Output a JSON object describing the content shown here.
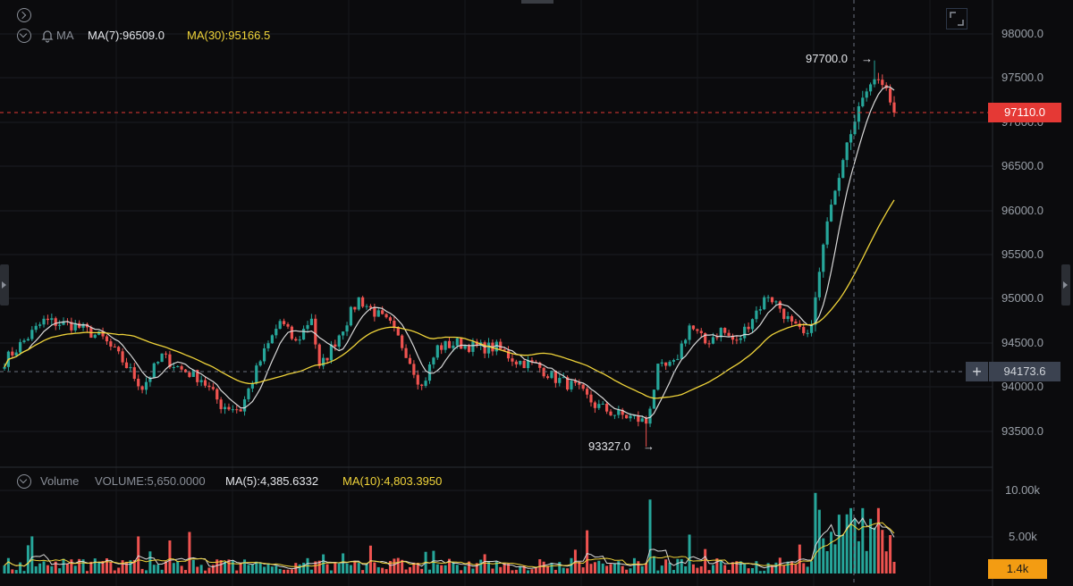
{
  "main_legend": {
    "indicator": "MA",
    "ma7": "MA(7):96509.0",
    "ma30": "MA(30):95166.5"
  },
  "volume_legend": {
    "title": "Volume",
    "volume": "VOLUME:5,650.0000",
    "ma5": "MA(5):4,385.6332",
    "ma10": "MA(10):4,803.3950"
  },
  "price_ticks": [
    "98000.0",
    "97500.0",
    "97000.0",
    "96500.0",
    "96000.0",
    "95500.0",
    "95000.0",
    "94500.0",
    "94000.0",
    "93500.0"
  ],
  "volume_ticks": [
    "10.00k",
    "5.00k"
  ],
  "annotations": {
    "high_label": "97700.0",
    "low_label": "93327.0"
  },
  "last_price_tag": "97110.0",
  "crosshair_price_tag": "94173.6",
  "last_volume_tag": "1.4k",
  "colors": {
    "up": "#26a69a",
    "down": "#ef5350",
    "ma_fast": "#d9d9d9",
    "ma_slow": "#f0d43a",
    "last_price": "#e53935",
    "volume_tag": "#f39c12"
  },
  "chart_data": {
    "type": "candlestick",
    "price_range": [
      93150,
      98300
    ],
    "volume_range": [
      0,
      11000
    ],
    "price_high": 97700.0,
    "price_low": 93327.0,
    "last_price": 97110.0,
    "keypoints": [
      {
        "i": 0,
        "p": 94300
      },
      {
        "i": 10,
        "p": 94750
      },
      {
        "i": 18,
        "p": 94700
      },
      {
        "i": 25,
        "p": 94550
      },
      {
        "i": 30,
        "p": 94300
      },
      {
        "i": 35,
        "p": 94000
      },
      {
        "i": 40,
        "p": 94350
      },
      {
        "i": 45,
        "p": 94200
      },
      {
        "i": 50,
        "p": 94100
      },
      {
        "i": 55,
        "p": 93800
      },
      {
        "i": 60,
        "p": 93750
      },
      {
        "i": 65,
        "p": 94300
      },
      {
        "i": 70,
        "p": 94750
      },
      {
        "i": 74,
        "p": 94500
      },
      {
        "i": 78,
        "p": 94800
      },
      {
        "i": 80,
        "p": 94200
      },
      {
        "i": 85,
        "p": 94600
      },
      {
        "i": 90,
        "p": 95000
      },
      {
        "i": 94,
        "p": 94850
      },
      {
        "i": 98,
        "p": 94700
      },
      {
        "i": 102,
        "p": 94400
      },
      {
        "i": 106,
        "p": 94000
      },
      {
        "i": 110,
        "p": 94450
      },
      {
        "i": 115,
        "p": 94500
      },
      {
        "i": 120,
        "p": 94450
      },
      {
        "i": 125,
        "p": 94450
      },
      {
        "i": 130,
        "p": 94300
      },
      {
        "i": 135,
        "p": 94250
      },
      {
        "i": 140,
        "p": 94100
      },
      {
        "i": 145,
        "p": 94000
      },
      {
        "i": 150,
        "p": 93800
      },
      {
        "i": 155,
        "p": 93700
      },
      {
        "i": 160,
        "p": 93650
      },
      {
        "i": 163,
        "p": 93600
      },
      {
        "i": 166,
        "p": 94200
      },
      {
        "i": 170,
        "p": 94250
      },
      {
        "i": 174,
        "p": 94700
      },
      {
        "i": 178,
        "p": 94500
      },
      {
        "i": 182,
        "p": 94650
      },
      {
        "i": 186,
        "p": 94500
      },
      {
        "i": 190,
        "p": 94800
      },
      {
        "i": 194,
        "p": 95050
      },
      {
        "i": 197,
        "p": 94900
      },
      {
        "i": 200,
        "p": 94700
      },
      {
        "i": 204,
        "p": 94550
      },
      {
        "i": 206,
        "p": 95000
      },
      {
        "i": 208,
        "p": 95600
      },
      {
        "i": 210,
        "p": 96100
      },
      {
        "i": 212,
        "p": 96400
      },
      {
        "i": 214,
        "p": 96800
      },
      {
        "i": 216,
        "p": 97000
      },
      {
        "i": 218,
        "p": 97300
      },
      {
        "i": 220,
        "p": 97450
      },
      {
        "i": 222,
        "p": 97500
      },
      {
        "i": 224,
        "p": 97350
      },
      {
        "i": 226,
        "p": 97110
      }
    ]
  }
}
